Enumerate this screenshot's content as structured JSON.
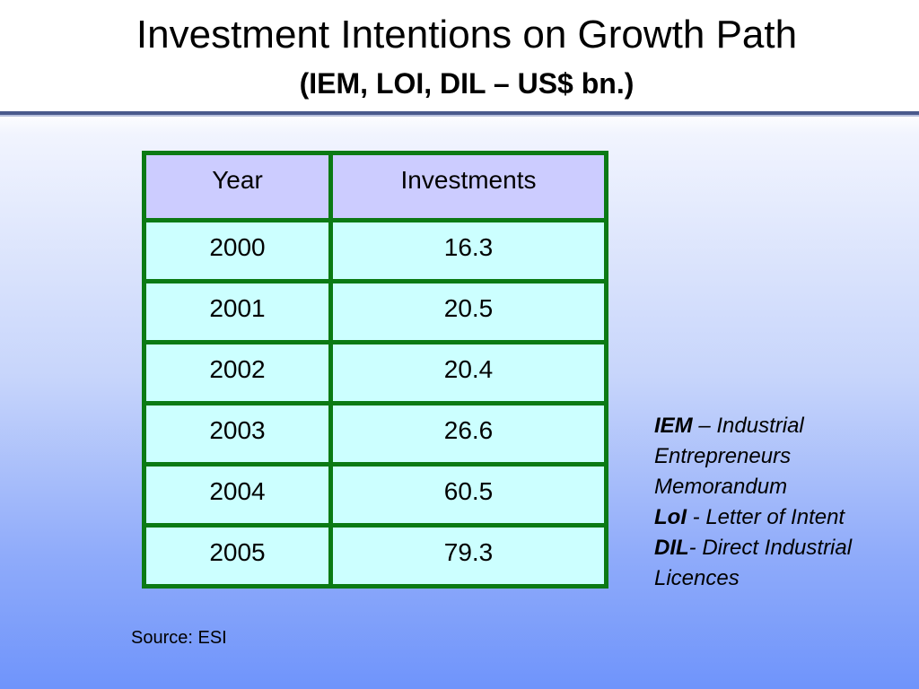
{
  "slide": {
    "title": "Investment Intentions on Growth Path",
    "subtitle": "(IEM, LOI, DIL – US$ bn.)"
  },
  "table": {
    "headers": [
      "Year",
      "Investments"
    ],
    "rows": [
      {
        "year": "2000",
        "value": "16.3"
      },
      {
        "year": "2001",
        "value": "20.5"
      },
      {
        "year": "2002",
        "value": "20.4"
      },
      {
        "year": "2003",
        "value": "26.6"
      },
      {
        "year": "2004",
        "value": "60.5"
      },
      {
        "year": "2005",
        "value": "79.3"
      }
    ]
  },
  "source": "Source: ESI",
  "legend": [
    {
      "abbr": "IEM",
      "sep": " – ",
      "desc": "Industrial Entrepreneurs Memorandum"
    },
    {
      "abbr": "LoI",
      "sep": " -  ",
      "desc": "Letter of Intent"
    },
    {
      "abbr": "DIL",
      "sep": "-  ",
      "desc": "Direct Industrial Licences"
    }
  ],
  "colors": {
    "table_border": "#0b7a14",
    "header_fill": "#ccccff",
    "cell_fill": "#ccffff",
    "title_rule": "#4a5a8c"
  }
}
